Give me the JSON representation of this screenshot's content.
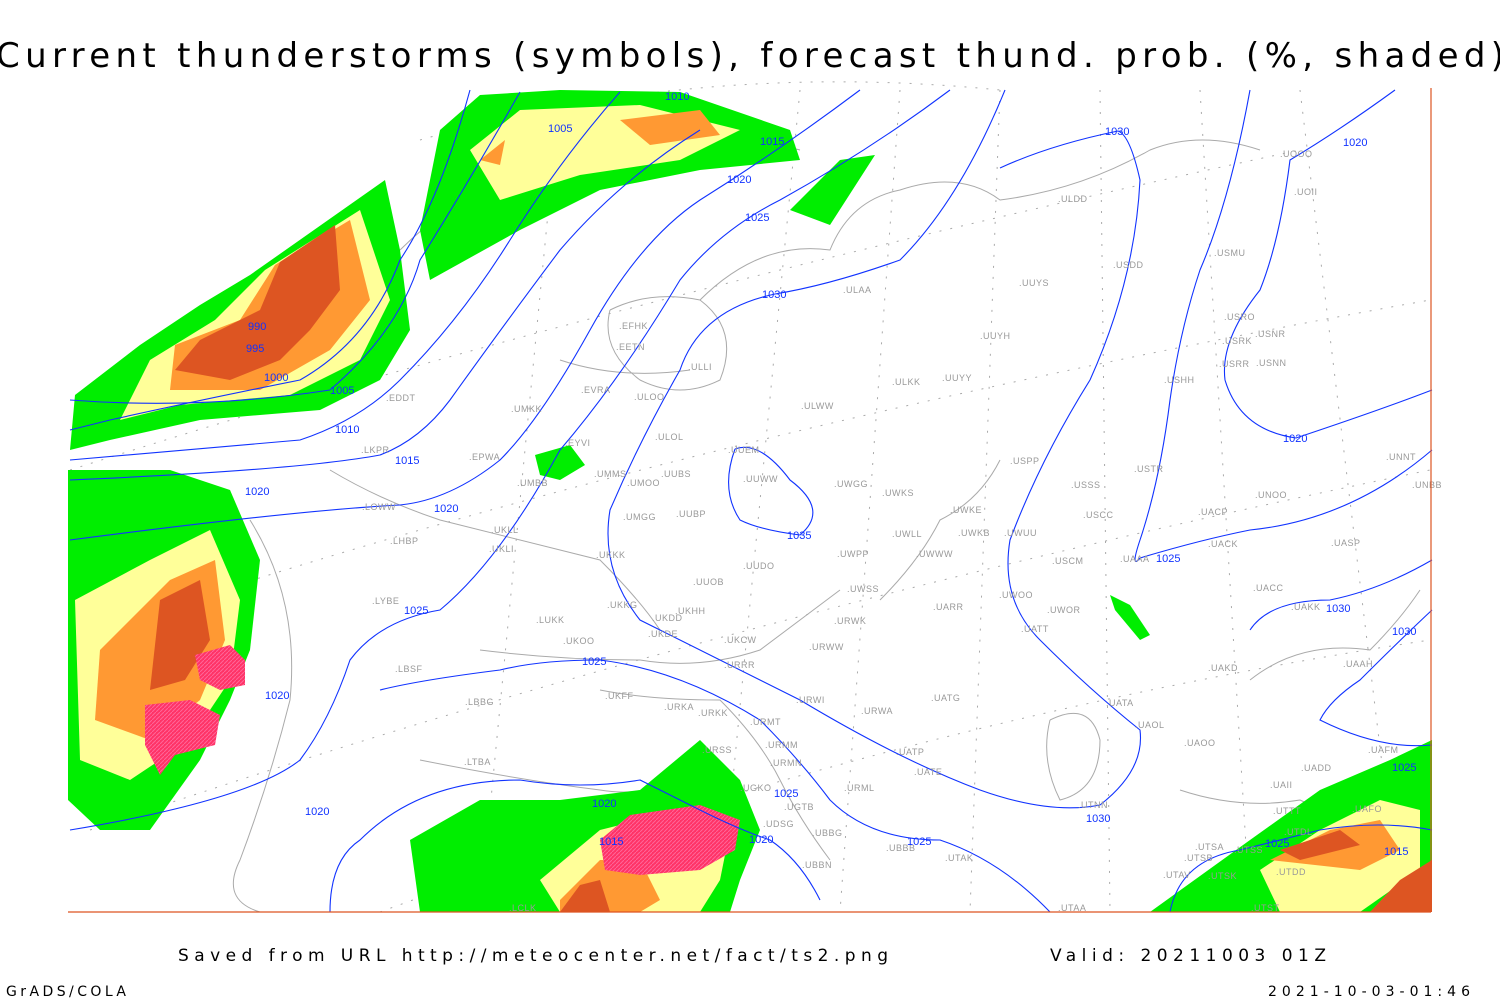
{
  "title": "Current thunderstorms (symbols), forecast thund. prob. (%, shaded)",
  "footer": {
    "source": "Saved from URL http://meteocenter.net/fact/ts2.png",
    "valid": "Valid: 20211003 01Z",
    "software": "GrADS/COLA",
    "timestamp": "2021-10-03-01:46"
  },
  "colors": {
    "prob_low": "#00ee00",
    "prob_mid": "#ffff99",
    "prob_high": "#ff9933",
    "prob_very_high": "#dd5522",
    "thunderstorm_symbols": "#ff3366",
    "isobars": "#1133ff",
    "coastlines": "#aaaaaa",
    "frame": "#dd5522"
  },
  "map": {
    "isobar_labels": [
      "1010",
      "1005",
      "1015",
      "1030",
      "1020",
      "1020",
      "1025",
      "990",
      "995",
      "1000",
      "1005",
      "1010",
      "1015",
      "1020",
      "1020",
      "1030",
      "1035",
      "1025",
      "1025",
      "1030",
      "1030",
      "1025",
      "1020",
      "1020",
      "1025",
      "1025",
      "1020",
      "1020",
      "1030",
      "1020",
      "1015",
      "1025",
      "1025",
      "1015"
    ],
    "stations": [
      "ULDD",
      "UOOO",
      "UOII",
      "USDD",
      "USMU",
      "UUYS",
      "ULAA",
      "USRO",
      "USRK",
      "USNR",
      "USRR",
      "USNN",
      "USHH",
      "UUYH",
      "EFHK",
      "EETN",
      "ULLI",
      "EVRA",
      "ULOO",
      "UMKK",
      "ULWW",
      "ULKK",
      "UUYY",
      "EDDT",
      "UUEM",
      "ULOL",
      "EYVI",
      "EPWA",
      "LKPR",
      "UMMS",
      "UMOO",
      "UUBS",
      "UUWW",
      "UWGG",
      "UWKS",
      "USPP",
      "USSS",
      "USTR",
      "UNOO",
      "UNNT",
      "UNBB",
      "UMBB",
      "LOWW",
      "UKLL",
      "LHBP",
      "UKLI",
      "UMGG",
      "UUBP",
      "UWKE",
      "UWKB",
      "UWUU",
      "USCC",
      "UACP",
      "UACK",
      "UASP",
      "UWLL",
      "UWWW",
      "UWPP",
      "USCM",
      "UAAA",
      "UKKK",
      "UUDO",
      "UUOB",
      "UWSS",
      "UWOO",
      "UWOR",
      "UATT",
      "UARR",
      "UACC",
      "UAKK",
      "LYBE",
      "UKHH",
      "UKKG",
      "UKDD",
      "UKDE",
      "LUKK",
      "UKOO",
      "UKCW",
      "URWK",
      "URWW",
      "LBSF",
      "URRR",
      "UAKD",
      "UAAH",
      "URWI",
      "UKFF",
      "LBBG",
      "URKA",
      "URKK",
      "URMT",
      "UATG",
      "URWA",
      "UATA",
      "UAOL",
      "UAOO",
      "URMM",
      "URSS",
      "URMN",
      "UATP",
      "UATE",
      "LTBA",
      "URML",
      "UAFM",
      "UADD",
      "UAII",
      "UGKO",
      "UGTB",
      "UTNN",
      "UTTT",
      "UTDL",
      "UAFO",
      "UDSG",
      "UBBG",
      "UBBB",
      "UTAK",
      "UBBN",
      "UTSA",
      "UTSS",
      "UTSB",
      "UTAV",
      "UTSK",
      "UTDD",
      "LCLK",
      "UTAA",
      "UTST"
    ]
  }
}
